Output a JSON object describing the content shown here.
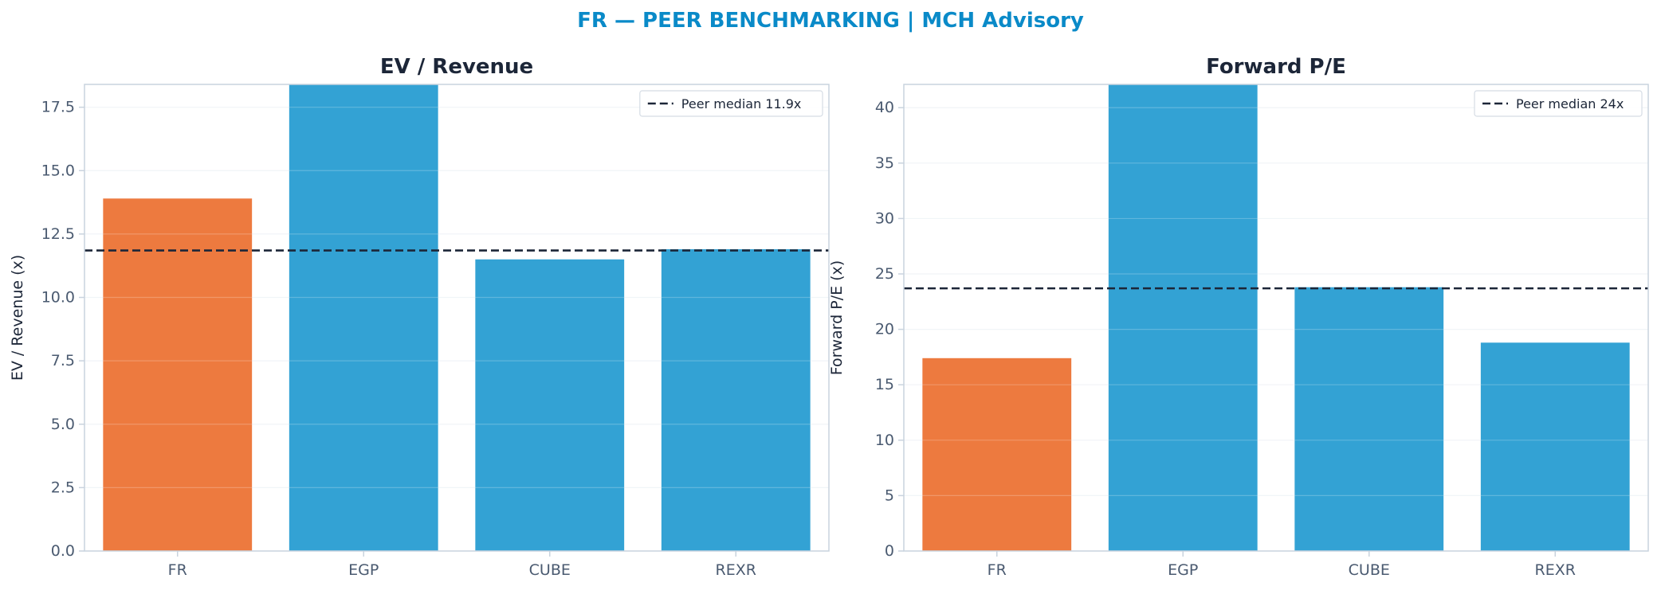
{
  "suptitle": "FR — PEER BENCHMARKING | MCH Advisory",
  "colors": {
    "title": "#0a8ac8",
    "subject": "#ed7a3f",
    "peer": "#33a2d4",
    "median_line": "#1c2638",
    "axis_text": "#4a5a70",
    "spine": "#c9d3de",
    "grid": "#eef2f6",
    "panel_title": "#1c2638"
  },
  "chart_data": [
    {
      "type": "bar",
      "title": "EV / Revenue",
      "ylabel": "EV / Revenue (x)",
      "categories": [
        "FR",
        "EGP",
        "CUBE",
        "REXR"
      ],
      "values": [
        13.9,
        18.4,
        11.5,
        11.9
      ],
      "highlight": "FR",
      "ylim": [
        0,
        18.4
      ],
      "yticks": [
        0,
        2.5,
        5,
        7.5,
        10,
        12.5,
        15,
        17.5
      ],
      "ytick_labels": [
        "0.0",
        "2.5",
        "5.0",
        "7.5",
        "10.0",
        "12.5",
        "15.0",
        "17.5"
      ],
      "reference_line": {
        "value": 11.85,
        "label": "Peer median 11.9x",
        "style": "dashed"
      },
      "legend_position": "top-right",
      "grid": true
    },
    {
      "type": "bar",
      "title": "Forward P/E",
      "ylabel": "Forward P/E (x)",
      "categories": [
        "FR",
        "EGP",
        "CUBE",
        "REXR"
      ],
      "values": [
        17.4,
        42.1,
        23.8,
        18.8
      ],
      "highlight": "FR",
      "ylim": [
        0,
        42.1
      ],
      "yticks": [
        0,
        5,
        10,
        15,
        20,
        25,
        30,
        35,
        40
      ],
      "ytick_labels": [
        "0",
        "5",
        "10",
        "15",
        "20",
        "25",
        "30",
        "35",
        "40"
      ],
      "reference_line": {
        "value": 23.7,
        "label": "Peer median 24x",
        "style": "dashed"
      },
      "legend_position": "top-right",
      "grid": true
    }
  ]
}
